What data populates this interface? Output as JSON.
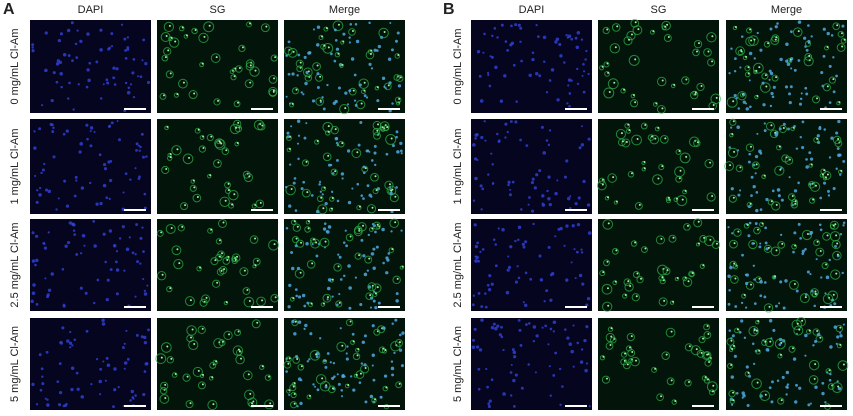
{
  "panels": [
    {
      "label": "A",
      "columns": [
        "DAPI",
        "SG",
        "Merge"
      ],
      "rows": [
        "0 mg/mL Cl-Am",
        "1 mg/mL Cl-Am",
        "2.5 mg/mL Cl-Am",
        "5 mg/mL Cl-Am"
      ]
    },
    {
      "label": "B",
      "columns": [
        "DAPI",
        "SG",
        "Merge"
      ],
      "rows": [
        "0 mg/mL Cl-Am",
        "1 mg/mL Cl-Am",
        "2.5 mg/mL Cl-Am",
        "5 mg/mL Cl-Am"
      ]
    }
  ]
}
